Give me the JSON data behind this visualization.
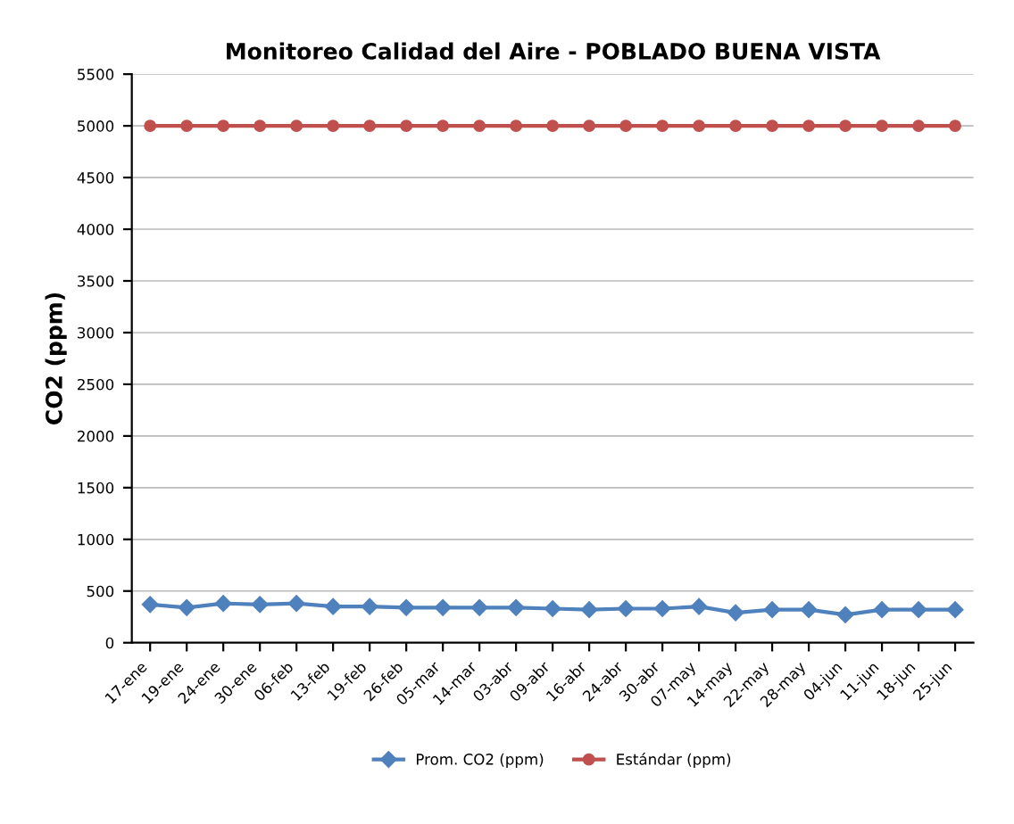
{
  "chart_data": {
    "type": "line",
    "title": "Monitoreo Calidad del Aire - POBLADO BUENA VISTA",
    "ylabel": "CO2 (ppm)",
    "categories": [
      "17-ene",
      "19-ene",
      "24-ene",
      "30-ene",
      "06-feb",
      "13-feb",
      "19-feb",
      "26-feb",
      "05-mar",
      "14-mar",
      "03-abr",
      "09-abr",
      "16-abr",
      "24-abr",
      "30-abr",
      "07-may",
      "14-may",
      "22-may",
      "28-may",
      "04-jun",
      "11-jun",
      "18-jun",
      "25-jun"
    ],
    "series": [
      {
        "name": "Prom. CO2 (ppm)",
        "color": "#4f81bd",
        "marker": "diamond",
        "values": [
          370,
          340,
          380,
          370,
          380,
          350,
          350,
          340,
          340,
          340,
          340,
          330,
          320,
          330,
          330,
          350,
          290,
          320,
          320,
          270,
          320,
          320,
          320
        ]
      },
      {
        "name": "Estándar (ppm)",
        "color": "#c0504d",
        "marker": "circle",
        "values": [
          5000,
          5000,
          5000,
          5000,
          5000,
          5000,
          5000,
          5000,
          5000,
          5000,
          5000,
          5000,
          5000,
          5000,
          5000,
          5000,
          5000,
          5000,
          5000,
          5000,
          5000,
          5000,
          5000
        ]
      }
    ],
    "ylim": [
      0,
      5500
    ],
    "yticks": [
      0,
      500,
      1000,
      1500,
      2000,
      2500,
      3000,
      3500,
      4000,
      4500,
      5000,
      5500
    ],
    "grid": "y",
    "legend": "bottom",
    "line_style": "solid"
  }
}
